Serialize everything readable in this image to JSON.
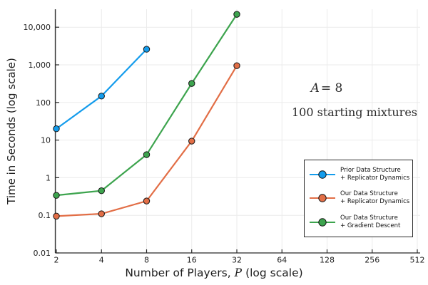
{
  "chart_data": {
    "type": "line",
    "title": "",
    "x_scale": "log2",
    "y_scale": "log10",
    "xlabel": {
      "pre": "Number of Players,",
      "var": "P",
      "post": "(log scale)"
    },
    "ylabel": "Time in Seconds (log scale)",
    "xlim": [
      2,
      512
    ],
    "ylim": [
      0.01,
      30000
    ],
    "grid": true,
    "legend_position": "bottom-right",
    "x_ticks": [
      2,
      4,
      8,
      16,
      32,
      64,
      128,
      256,
      512
    ],
    "x_tick_labels": [
      "2",
      "4",
      "8",
      "16",
      "32",
      "64",
      "128",
      "256",
      "512"
    ],
    "y_ticks": [
      0.01,
      0.1,
      1,
      10,
      100,
      1000,
      10000
    ],
    "y_tick_labels": [
      "0.01",
      "0.1",
      "1",
      "10",
      "100",
      "1,000",
      "10,000"
    ],
    "series": [
      {
        "name": "Prior Data Structure + Replicator Dynamics",
        "label_lines": [
          "Prior Data Structure",
          "+ Replicator Dynamics"
        ],
        "color": "#149CEC",
        "x": [
          2,
          4,
          8
        ],
        "y": [
          20,
          148,
          2600
        ]
      },
      {
        "name": "Our Data Structure + Replicator Dynamics",
        "label_lines": [
          "Our Data Structure",
          "+ Replicator Dynamics"
        ],
        "color": "#E26E46",
        "x": [
          2,
          4,
          8,
          16,
          32
        ],
        "y": [
          0.095,
          0.11,
          0.24,
          9.4,
          950
        ]
      },
      {
        "name": "Our Data Structure + Gradient Descent",
        "label_lines": [
          "Our Data Structure",
          "+ Gradient Descent"
        ],
        "color": "#3DA44E",
        "x": [
          2,
          4,
          8,
          16,
          32
        ],
        "y": [
          0.34,
          0.45,
          4.1,
          320,
          22000
        ]
      }
    ],
    "annotations": [
      {
        "var": "A",
        "eq": "= 8"
      },
      {
        "text": "100 starting mixtures"
      }
    ]
  },
  "colors": {
    "background": "#ffffff",
    "axis": "#2b2b2b",
    "grid": "#ebebeb",
    "tick_text": "#1f1f1f",
    "marker_stroke": "#161616",
    "legend_border": "#2a2a2a"
  }
}
